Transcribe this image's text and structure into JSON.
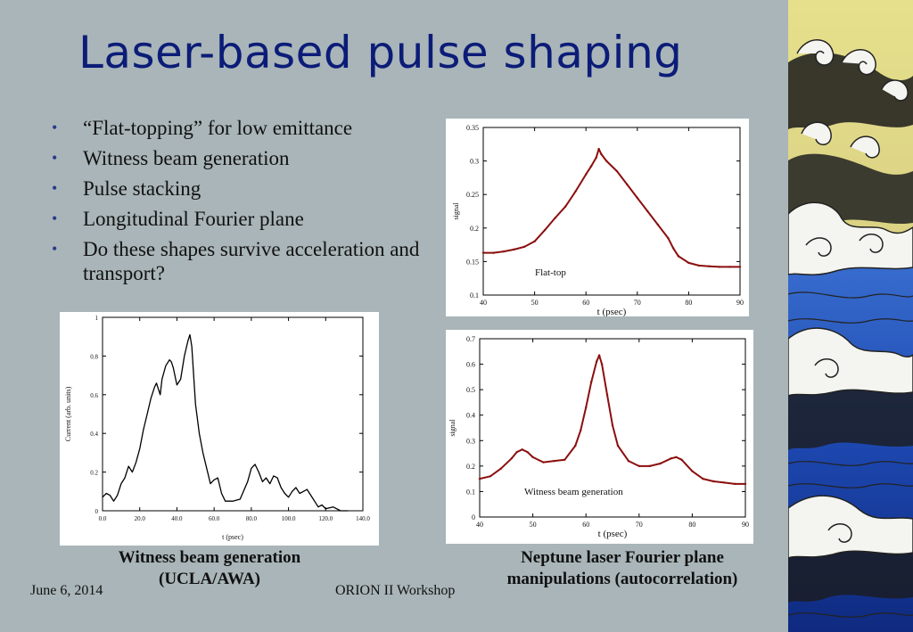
{
  "slide": {
    "title": "Laser-based pulse shaping",
    "bullets": [
      "“Flat-topping” for low emittance",
      "Witness beam generation",
      "Pulse stacking",
      "Longitudinal Fourier plane",
      "Do these shapes survive acceleration and transport?"
    ],
    "bullet_symbol": "•",
    "caption_left": [
      "Witness beam generation",
      "(UCLA/AWA)"
    ],
    "caption_right": [
      "Neptune laser Fourier plane",
      "manipulations (autocorrelation)"
    ],
    "footer_date": "June 6, 2014",
    "footer_event": "ORION II Workshop"
  },
  "colors": {
    "background": "#a9b5b8",
    "title": "#0b1c78",
    "trace_red": "#8b0f0f",
    "trace_black": "#000000"
  },
  "chart_data": [
    {
      "type": "line",
      "id": "flat-top",
      "xlabel": "t (psec)",
      "ylabel": "signal",
      "annotation": "Flat-top",
      "xlim": [
        40,
        90
      ],
      "ylim": [
        0.1,
        0.35
      ],
      "xticks": [
        40,
        50,
        60,
        70,
        80,
        90
      ],
      "yticks": [
        0.1,
        0.15,
        0.2,
        0.25,
        0.3,
        0.35
      ],
      "ytick_labels": [
        "0.1",
        "0.15",
        "0.2",
        "0.25",
        "0.3",
        "0.35"
      ],
      "series": [
        {
          "x": [
            40,
            42,
            44,
            46,
            48,
            50,
            52,
            54,
            56,
            58,
            60,
            61,
            62,
            62.5,
            63,
            64,
            66,
            68,
            70,
            72,
            74,
            76,
            77,
            78,
            80,
            82,
            84,
            86,
            88,
            90
          ],
          "y": [
            0.163,
            0.163,
            0.165,
            0.168,
            0.172,
            0.18,
            0.197,
            0.215,
            0.232,
            0.255,
            0.28,
            0.292,
            0.305,
            0.318,
            0.31,
            0.3,
            0.285,
            0.265,
            0.245,
            0.225,
            0.205,
            0.185,
            0.17,
            0.158,
            0.148,
            0.144,
            0.143,
            0.142,
            0.142,
            0.142
          ]
        }
      ]
    },
    {
      "type": "line",
      "id": "witness-neptune",
      "xlabel": "t (psec)",
      "ylabel": "signal",
      "annotation": "Witness beam generation",
      "xlim": [
        40,
        90
      ],
      "ylim": [
        0,
        0.7
      ],
      "xticks": [
        40,
        50,
        60,
        70,
        80,
        90
      ],
      "yticks": [
        0,
        0.1,
        0.2,
        0.3,
        0.4,
        0.5,
        0.6,
        0.7
      ],
      "ytick_labels": [
        "0",
        "0.1",
        "0.2",
        "0.3",
        "0.4",
        "0.5",
        "0.6",
        "0.7"
      ],
      "series": [
        {
          "x": [
            40,
            42,
            44,
            46,
            47,
            48,
            49,
            50,
            52,
            54,
            56,
            58,
            59,
            60,
            61,
            62,
            62.5,
            63,
            64,
            65,
            66,
            68,
            70,
            72,
            74,
            76,
            77,
            78,
            80,
            82,
            84,
            86,
            88,
            90
          ],
          "y": [
            0.15,
            0.16,
            0.19,
            0.23,
            0.255,
            0.265,
            0.255,
            0.235,
            0.215,
            0.22,
            0.225,
            0.28,
            0.34,
            0.43,
            0.53,
            0.61,
            0.635,
            0.6,
            0.48,
            0.36,
            0.28,
            0.22,
            0.2,
            0.2,
            0.21,
            0.23,
            0.235,
            0.225,
            0.18,
            0.15,
            0.14,
            0.135,
            0.13,
            0.13
          ]
        }
      ]
    },
    {
      "type": "line",
      "id": "ucla-awa",
      "xlabel": "t (psec)",
      "ylabel": "Current (arb. units)",
      "xlim": [
        0,
        140
      ],
      "ylim": [
        0,
        1
      ],
      "xticks": [
        0,
        20,
        40,
        60,
        80,
        100,
        120,
        140
      ],
      "xtick_labels": [
        "0.0",
        "20.0",
        "40.0",
        "60.0",
        "80.0",
        "100.0",
        "120.0",
        "140.0"
      ],
      "yticks": [
        0,
        0.2,
        0.4,
        0.6,
        0.8,
        1
      ],
      "ytick_labels": [
        "0",
        "0.2",
        "0.4",
        "0.6",
        "0.8",
        "1"
      ],
      "series": [
        {
          "x": [
            0,
            2,
            4,
            6,
            8,
            10,
            12,
            14,
            16,
            18,
            20,
            22,
            24,
            26,
            28,
            29,
            30,
            31,
            32,
            34,
            36,
            37,
            38,
            40,
            42,
            44,
            46,
            47,
            48,
            50,
            52,
            54,
            56,
            58,
            60,
            62,
            64,
            66,
            70,
            74,
            78,
            80,
            82,
            84,
            86,
            88,
            90,
            92,
            94,
            96,
            98,
            100,
            102,
            104,
            106,
            108,
            110,
            112,
            114,
            116,
            118,
            120,
            124,
            128,
            132
          ],
          "y": [
            0.07,
            0.09,
            0.08,
            0.05,
            0.08,
            0.14,
            0.17,
            0.23,
            0.2,
            0.25,
            0.32,
            0.42,
            0.5,
            0.58,
            0.64,
            0.66,
            0.63,
            0.6,
            0.68,
            0.75,
            0.78,
            0.77,
            0.74,
            0.65,
            0.68,
            0.8,
            0.88,
            0.91,
            0.85,
            0.55,
            0.4,
            0.3,
            0.22,
            0.14,
            0.16,
            0.17,
            0.09,
            0.05,
            0.05,
            0.06,
            0.15,
            0.22,
            0.24,
            0.2,
            0.15,
            0.17,
            0.14,
            0.18,
            0.17,
            0.12,
            0.09,
            0.07,
            0.1,
            0.12,
            0.09,
            0.1,
            0.11,
            0.08,
            0.05,
            0.02,
            0.03,
            0.01,
            0.02,
            0,
            0
          ]
        }
      ]
    }
  ]
}
